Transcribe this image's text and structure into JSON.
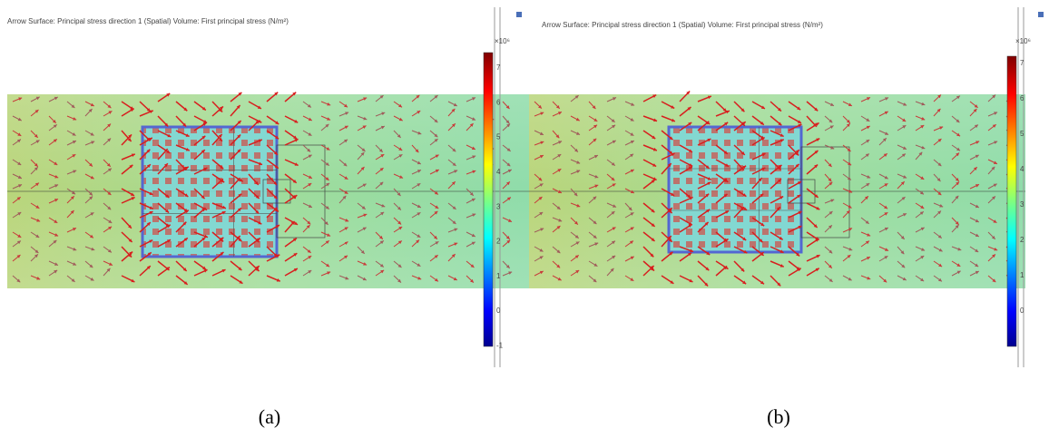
{
  "panels": [
    {
      "title": "Arrow Surface: Principal stress direction 1 (Spatial)  Volume: First principal stress (N/m²)",
      "multiplier": "×10⁶",
      "colorbar_ticks": [
        7,
        6,
        5,
        4,
        3,
        2,
        1,
        0,
        -1
      ],
      "caption": "(a)"
    },
    {
      "title": "Arrow Surface: Principal stress direction 1 (Spatial)  Volume: First principal stress (N/m²)",
      "multiplier": "×10⁶",
      "colorbar_ticks": [
        7,
        6,
        5,
        4,
        3,
        2,
        1,
        0
      ],
      "caption": "(b)"
    }
  ]
}
